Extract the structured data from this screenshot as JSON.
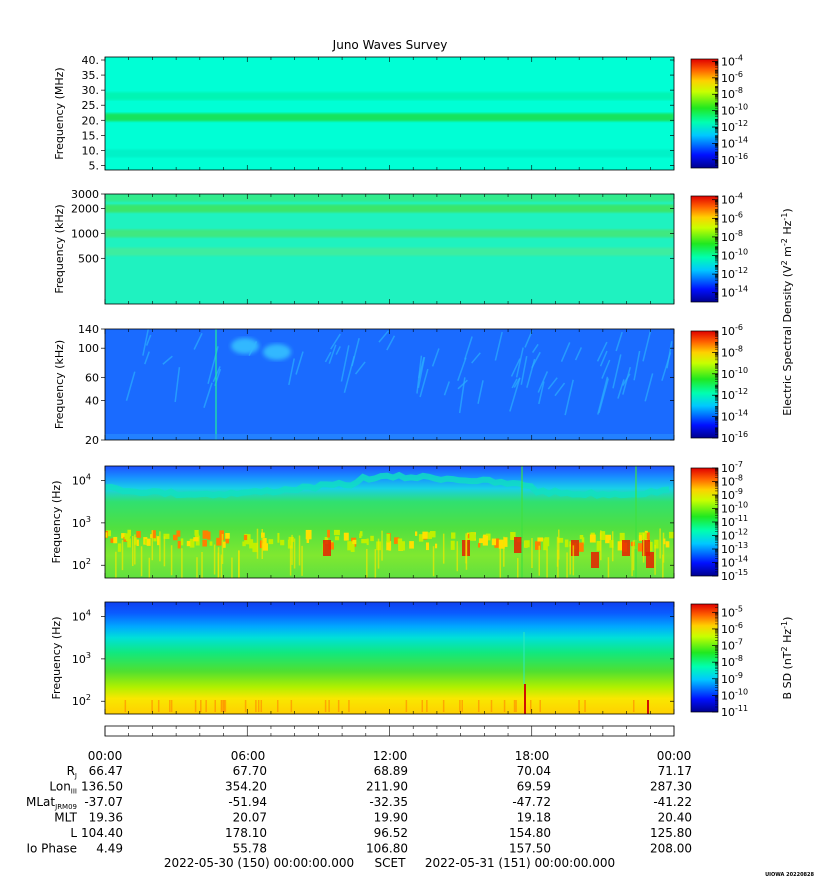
{
  "title": "Juno Waves Survey",
  "stamp": "UIOWA 20220828",
  "chart_data": [
    {
      "type": "heatmap",
      "ylabel": "Frequency (MHz)",
      "y_scale": "linear",
      "ylim": [
        3.5,
        41
      ],
      "yticks": [
        {
          "v": 40,
          "t": "40."
        },
        {
          "v": 35,
          "t": "35."
        },
        {
          "v": 30,
          "t": "30."
        },
        {
          "v": 25,
          "t": "25."
        },
        {
          "v": 20,
          "t": "20."
        },
        {
          "v": 15,
          "t": "15."
        },
        {
          "v": 10,
          "t": "10."
        },
        {
          "v": 5,
          "t": "5."
        }
      ],
      "colorbar": {
        "scale": "log",
        "range_exp": [
          -17,
          -3.7
        ],
        "major_exp": [
          -4,
          -6,
          -8,
          -10,
          -12,
          -14,
          -16
        ]
      },
      "background": "#00ffd5",
      "bands": [
        {
          "value": 21,
          "color": "#16e35b"
        },
        {
          "value": 28,
          "color": "#00f5b3"
        },
        {
          "value": 9,
          "color": "#00f2c8"
        }
      ]
    },
    {
      "type": "heatmap",
      "ylabel": "Frequency (kHz)",
      "y_scale": "log",
      "ylim": [
        140,
        3000
      ],
      "yticks": [
        {
          "v": 3000,
          "t": "3000"
        },
        {
          "v": 2000,
          "t": "2000"
        },
        {
          "v": 1000,
          "t": "1000"
        },
        {
          "v": 500,
          "t": "500"
        }
      ],
      "colorbar": {
        "scale": "log",
        "range_exp": [
          -15,
          -3.6
        ],
        "major_exp": [
          -4,
          -6,
          -8,
          -10,
          -12,
          -14
        ]
      },
      "background": "#1ff2c0",
      "bands": [
        {
          "value": 2000,
          "color": "#3ae66a"
        },
        {
          "value": 1000,
          "color": "#40e880"
        },
        {
          "value": 600,
          "color": "#3deda0"
        },
        {
          "value": 2700,
          "color": "#33ec8c"
        }
      ]
    },
    {
      "type": "heatmap",
      "ylabel": "Frequency (kHz)",
      "y_scale": "log",
      "ylim": [
        20,
        140
      ],
      "yticks": [
        {
          "v": 140,
          "t": "140"
        },
        {
          "v": 100,
          "t": "100"
        },
        {
          "v": 60,
          "t": "60"
        },
        {
          "v": 40,
          "t": "40"
        },
        {
          "v": 20,
          "t": "20"
        }
      ],
      "colorbar": {
        "scale": "log",
        "range_exp": [
          -16,
          -6
        ],
        "major_exp": [
          -6,
          -8,
          -10,
          -12,
          -14,
          -16
        ]
      },
      "background": "#1a6bff",
      "bands": []
    },
    {
      "type": "heatmap",
      "ylabel": "Frequency (Hz)",
      "y_scale": "log",
      "ylim": [
        50,
        22000
      ],
      "yticks": [
        {
          "v": 10000,
          "t": "10",
          "sup": "4"
        },
        {
          "v": 1000,
          "t": "10",
          "sup": "3"
        },
        {
          "v": 100,
          "t": "10",
          "sup": "2"
        }
      ],
      "colorbar": {
        "scale": "log",
        "range_exp": [
          -15,
          -7
        ],
        "major_exp": [
          -7,
          -8,
          -9,
          -10,
          -11,
          -12,
          -13,
          -14,
          -15
        ]
      },
      "background": "#2ee65a",
      "bands": []
    },
    {
      "type": "heatmap",
      "ylabel": "Frequency (Hz)",
      "y_scale": "log",
      "ylim": [
        50,
        22000
      ],
      "yticks": [
        {
          "v": 10000,
          "t": "10",
          "sup": "4"
        },
        {
          "v": 1000,
          "t": "10",
          "sup": "3"
        },
        {
          "v": 100,
          "t": "10",
          "sup": "2"
        }
      ],
      "colorbar": {
        "scale": "log",
        "range_exp": [
          -11,
          -4.5
        ],
        "major_exp": [
          -5,
          -6,
          -7,
          -8,
          -9,
          -10,
          -11
        ]
      },
      "background": "#00e8a0",
      "bands": []
    }
  ],
  "colorbar_labels": {
    "electric": "Electric Spectral Density (V² m⁻² Hz⁻¹)",
    "magnetic": "B SD (nT² Hz⁻¹)"
  },
  "time_axis": {
    "ticks": [
      "00:00",
      "06:00",
      "12:00",
      "18:00",
      "00:00"
    ],
    "minor_per_major": 6
  },
  "ephemeris": [
    {
      "label": "R",
      "sub": "J",
      "values": [
        "66.47",
        "67.70",
        "68.89",
        "70.04",
        "71.17"
      ]
    },
    {
      "label": "Lon",
      "sub": "III",
      "values": [
        "136.50",
        "354.20",
        "211.90",
        "69.59",
        "287.30"
      ]
    },
    {
      "label": "MLat",
      "sub": "JRM09",
      "values": [
        "-37.07",
        "-51.94",
        "-32.35",
        "-47.72",
        "-41.22"
      ]
    },
    {
      "label": "MLT",
      "sub": "",
      "values": [
        "19.36",
        "20.07",
        "19.90",
        "19.18",
        "20.40"
      ]
    },
    {
      "label": "L",
      "sub": "",
      "values": [
        "104.40",
        "178.10",
        "96.52",
        "154.80",
        "125.80"
      ]
    },
    {
      "label": "Io Phase",
      "sub": "",
      "values": [
        "4.49",
        "55.78",
        "106.80",
        "157.50",
        "208.00"
      ]
    }
  ],
  "footer": {
    "start": "2022-05-30 (150) 00:00:00.000",
    "scet": "SCET",
    "end": "2022-05-31 (151) 00:00:00.000"
  }
}
